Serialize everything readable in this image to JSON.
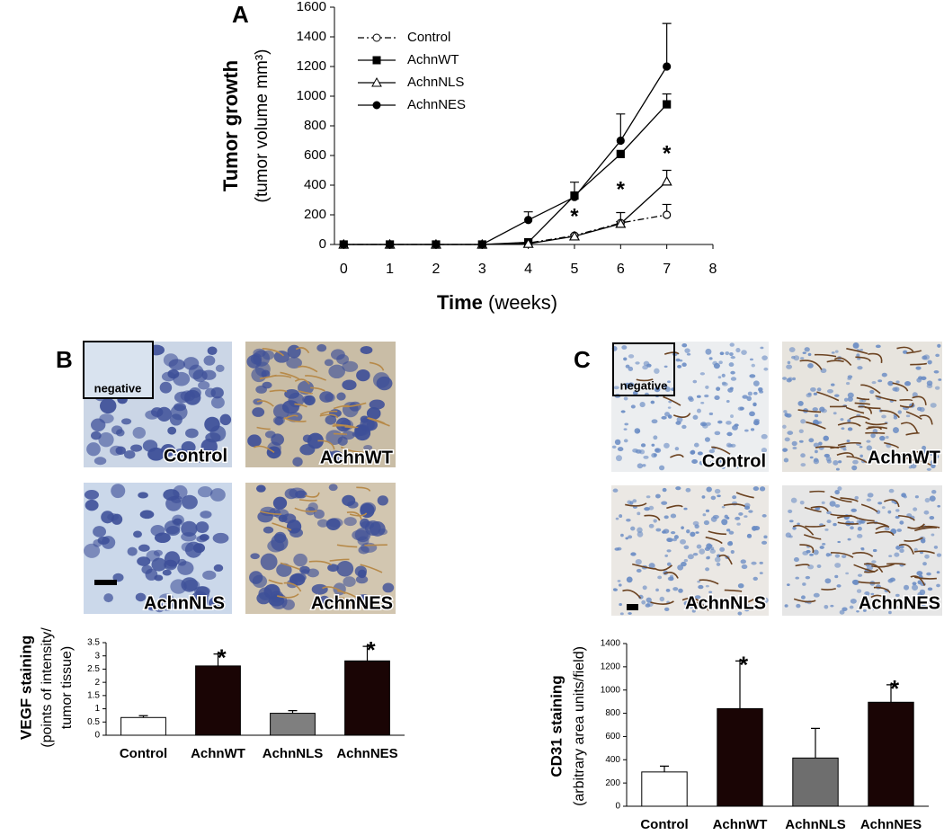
{
  "panel_labels": [
    "A",
    "B",
    "C"
  ],
  "micrographs_b": {
    "labels": [
      "Control",
      "AchnWT",
      "AchnNLS",
      "AchnNES"
    ],
    "inset": "negative"
  },
  "micrographs_c": {
    "labels": [
      "Control",
      "AchnWT",
      "AchnNLS",
      "AchnNES"
    ],
    "inset": "negative"
  },
  "chart_data": [
    {
      "type": "line",
      "ylabel": "Tumor growth",
      "ylabel_unit": "(tumor volume mm³)",
      "xlabel": "Time",
      "xlabel_unit": "(weeks)",
      "x": [
        0,
        1,
        2,
        3,
        4,
        5,
        6,
        7
      ],
      "xlim": [
        -0.2,
        8
      ],
      "xticks": [
        0,
        1,
        2,
        3,
        4,
        5,
        6,
        7,
        8
      ],
      "ylim": [
        0,
        1600
      ],
      "yticks": [
        0,
        200,
        400,
        600,
        800,
        1000,
        1200,
        1400,
        1600
      ],
      "legend": "upper left",
      "series": [
        {
          "name": "Control",
          "color": "#000000",
          "marker": "circle-open",
          "dash": true,
          "values": [
            0,
            0,
            0,
            0,
            10,
            60,
            145,
            200
          ],
          "errors": [
            null,
            null,
            null,
            null,
            null,
            null,
            10,
            70
          ]
        },
        {
          "name": "AchnWT",
          "color": "#000000",
          "marker": "square",
          "dash": false,
          "values": [
            0,
            0,
            0,
            0,
            15,
            330,
            610,
            945
          ],
          "errors": [
            null,
            null,
            null,
            null,
            null,
            null,
            null,
            70
          ]
        },
        {
          "name": "AchnNLS",
          "color": "#000000",
          "marker": "triangle-open",
          "dash": false,
          "values": [
            0,
            0,
            0,
            0,
            5,
            55,
            140,
            425
          ],
          "errors": [
            null,
            null,
            null,
            null,
            null,
            10,
            75,
            75
          ]
        },
        {
          "name": "AchnNES",
          "color": "#000000",
          "marker": "circle",
          "dash": false,
          "values": [
            0,
            0,
            0,
            0,
            165,
            320,
            700,
            1200
          ],
          "errors": [
            null,
            null,
            null,
            null,
            55,
            100,
            180,
            290
          ]
        }
      ],
      "annotations": [
        {
          "x": 5,
          "y": 182,
          "text": "*"
        },
        {
          "x": 6,
          "y": 364,
          "text": "*"
        },
        {
          "x": 7,
          "y": 606,
          "text": "*"
        }
      ]
    },
    {
      "type": "bar",
      "ylabel": "VEGF staining",
      "ylabel_unit": [
        "(points of intensity/",
        "tumor tissue)"
      ],
      "categories": [
        "Control",
        "AchnWT",
        "AchnNLS",
        "AchnNES"
      ],
      "values": [
        0.67,
        2.62,
        0.83,
        2.81
      ],
      "errors": [
        0.07,
        0.45,
        0.1,
        0.55
      ],
      "colors": [
        "#ffffff",
        "#1a0505",
        "#7f7f7f",
        "#1a0505"
      ],
      "markers": [
        null,
        "*",
        null,
        "*"
      ],
      "ylim": [
        0,
        3.5
      ],
      "yticks": [
        0,
        0.5,
        1,
        1.5,
        2,
        2.5,
        3,
        3.5
      ]
    },
    {
      "type": "bar",
      "ylabel": "CD31 staining",
      "ylabel_unit": [
        "(arbitrary area units/field)"
      ],
      "categories": [
        "Control",
        "AchnWT",
        "AchnNLS",
        "AchnNES"
      ],
      "values": [
        295,
        840,
        415,
        895
      ],
      "errors": [
        50,
        410,
        255,
        150
      ],
      "colors": [
        "#ffffff",
        "#1a0505",
        "#6e6e6e",
        "#1a0505"
      ],
      "markers": [
        null,
        "*",
        null,
        "*"
      ],
      "ylim": [
        0,
        1400
      ],
      "yticks": [
        0,
        200,
        400,
        600,
        800,
        1000,
        1200,
        1400
      ]
    }
  ]
}
